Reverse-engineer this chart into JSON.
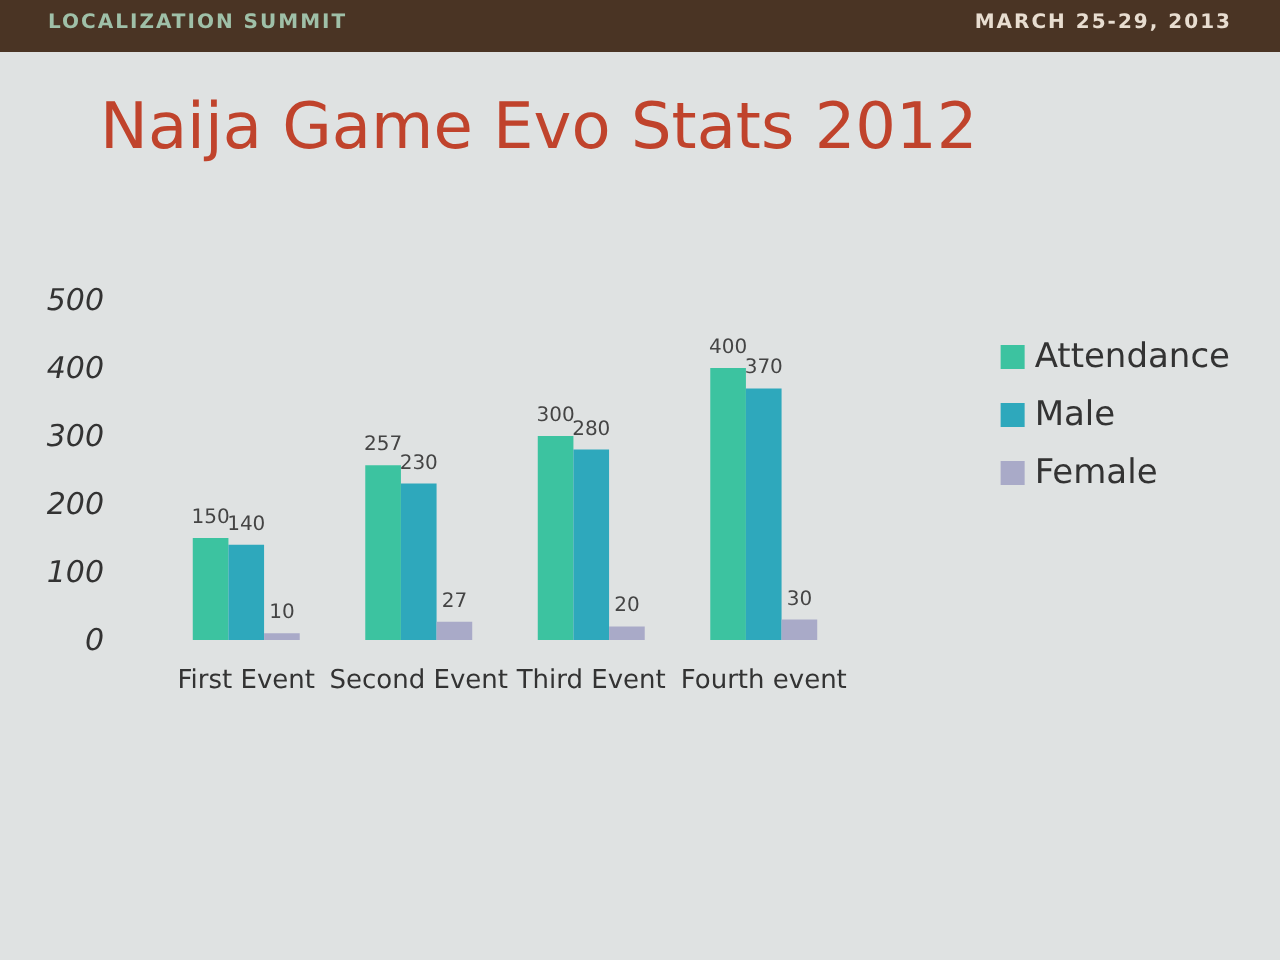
{
  "chart_data": {
    "type": "bar",
    "title": "Naija Game Evo Stats 2012",
    "annotations": [
      "LOCALIZATION SUMMIT",
      "MARCH 25-29, 2013"
    ],
    "categories": [
      "First Event",
      "Second Event",
      "Third Event",
      "Fourth event"
    ],
    "series": [
      {
        "name": "Attendance",
        "color": "#3cc3a0",
        "values": [
          150,
          257,
          300,
          400
        ]
      },
      {
        "name": "Male",
        "color": "#2ea8bc",
        "values": [
          140,
          230,
          280,
          370
        ]
      },
      {
        "name": "Female",
        "color": "#a9aac8",
        "values": [
          10,
          27,
          20,
          30
        ]
      }
    ],
    "ylim": [
      0,
      500
    ],
    "yticks": [
      0,
      100,
      200,
      300,
      400,
      500
    ],
    "legend": "right",
    "data_labels": true
  }
}
